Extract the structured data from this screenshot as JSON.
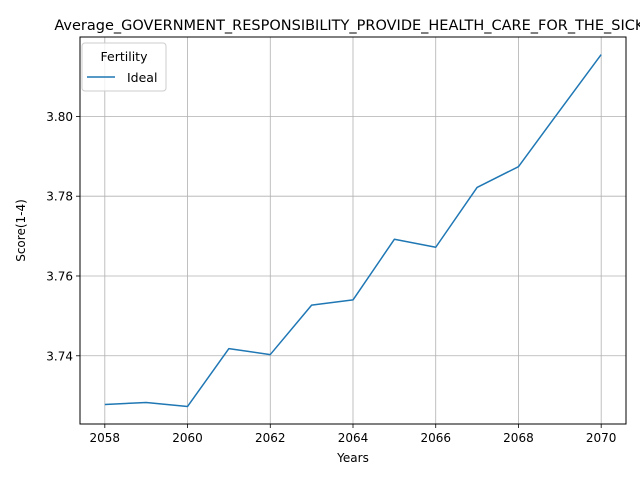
{
  "chart_data": {
    "type": "line",
    "title": "Average_GOVERNMENT_RESPONSIBILITY_PROVIDE_HEALTH_CARE_FOR_THE_SICK_",
    "xlabel": "Years",
    "ylabel": "Score(1-4)",
    "x": [
      2058,
      2059,
      2060,
      2061,
      2062,
      2063,
      2064,
      2065,
      2066,
      2067,
      2068,
      2069,
      2070
    ],
    "series": [
      {
        "name": "Ideal",
        "color": "#1f77b4",
        "values": [
          3.7278,
          3.7283,
          3.7273,
          3.7418,
          3.7403,
          3.7527,
          3.754,
          3.7692,
          3.7672,
          3.7822,
          3.7874,
          3.8015,
          3.8155
        ]
      }
    ],
    "xlim": [
      2057.4,
      2070.6
    ],
    "ylim": [
      3.7229,
      3.8199
    ],
    "xticks": [
      2058,
      2060,
      2062,
      2064,
      2066,
      2068,
      2070
    ],
    "xtick_labels": [
      "2058",
      "2060",
      "2062",
      "2064",
      "2066",
      "2068",
      "2070"
    ],
    "yticks": [
      3.74,
      3.76,
      3.78,
      3.8
    ],
    "ytick_labels": [
      "3.74",
      "3.76",
      "3.78",
      "3.80"
    ],
    "grid": true,
    "legend": {
      "title": "Fertility",
      "placement": "upper-left"
    }
  }
}
